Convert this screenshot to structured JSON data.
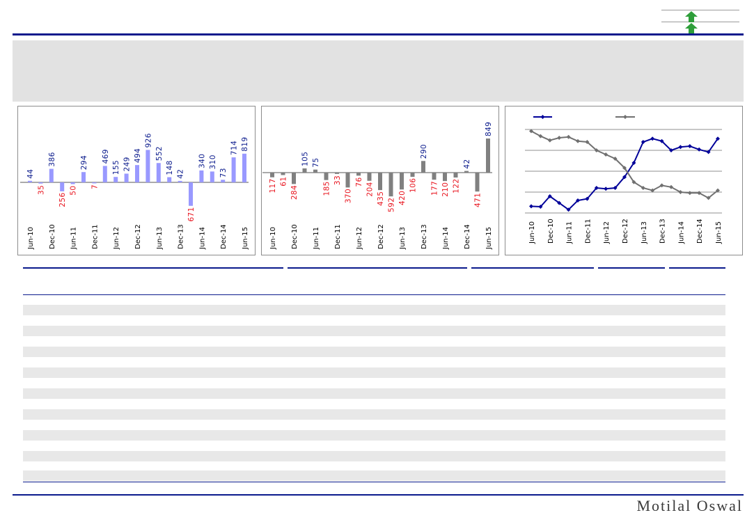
{
  "brand": {
    "name": "Motilal Oswal"
  },
  "header": {
    "arrows": [
      "up-arrow-icon",
      "up-arrow-icon"
    ],
    "arrow_color": "#2e9e3a"
  },
  "colors": {
    "accent": "#0a1a8c",
    "positive": "#0a1a8c",
    "negative": "#e8141e",
    "bar1": "#9999ff",
    "bar2": "#808080",
    "series1": "#000099",
    "series2": "#707070"
  },
  "chart_data": [
    {
      "type": "bar",
      "categories": [
        "Jun-10",
        "Sep-10",
        "Dec-10",
        "Mar-11",
        "Jun-11",
        "Sep-11",
        "Dec-11",
        "Mar-12",
        "Jun-12",
        "Sep-12",
        "Dec-12",
        "Mar-13",
        "Jun-13",
        "Sep-13",
        "Dec-13",
        "Mar-14",
        "Jun-14",
        "Sep-14",
        "Dec-14",
        "Mar-15",
        "Jun-15"
      ],
      "tick_labels": [
        "Jun-10",
        "Dec-10",
        "Jun-11",
        "Dec-11",
        "Jun-12",
        "Dec-12",
        "Jun-13",
        "Dec-13",
        "Jun-14",
        "Dec-14",
        "Jun-15"
      ],
      "values": [
        44,
        -35,
        386,
        -256,
        -50,
        294,
        -7,
        469,
        155,
        249,
        494,
        926,
        552,
        148,
        42,
        -671,
        340,
        310,
        73,
        714,
        819
      ],
      "labels": [
        "44",
        "35",
        "386",
        "256",
        "50",
        "294",
        "7",
        "469",
        "155",
        "249",
        "494",
        "926",
        "552",
        "148",
        "42",
        "671",
        "340",
        "310",
        "73",
        "714",
        "819"
      ],
      "ylim": [
        -850,
        1000
      ]
    },
    {
      "type": "bar",
      "categories": [
        "Jun-10",
        "Sep-10",
        "Dec-10",
        "Mar-11",
        "Jun-11",
        "Sep-11",
        "Dec-11",
        "Mar-12",
        "Jun-12",
        "Sep-12",
        "Dec-12",
        "Mar-13",
        "Jun-13",
        "Sep-13",
        "Dec-13",
        "Mar-14",
        "Jun-14",
        "Sep-14",
        "Dec-14",
        "Mar-15",
        "Jun-15"
      ],
      "tick_labels": [
        "Jun-10",
        "Dec-10",
        "Jun-11",
        "Dec-11",
        "Jun-12",
        "Dec-12",
        "Jun-13",
        "Dec-13",
        "Jun-14",
        "Dec-14",
        "Jun-15"
      ],
      "values": [
        -117,
        -61,
        -284,
        105,
        75,
        -185,
        -33,
        -370,
        -76,
        -204,
        -435,
        -592,
        -420,
        -106,
        290,
        -177,
        -210,
        -122,
        42,
        -471,
        849
      ],
      "labels": [
        "117",
        "61",
        "284",
        "105",
        "75",
        "185",
        "33",
        "370",
        "76",
        "204",
        "435",
        "592",
        "420",
        "106",
        "290",
        "177",
        "210",
        "122",
        "42",
        "471",
        "849"
      ],
      "ylim": [
        -800,
        1050
      ]
    },
    {
      "type": "line",
      "x": [
        "Jun-10",
        "Sep-10",
        "Dec-10",
        "Mar-11",
        "Jun-11",
        "Sep-11",
        "Dec-11",
        "Mar-12",
        "Jun-12",
        "Sep-12",
        "Dec-12",
        "Mar-13",
        "Jun-13",
        "Sep-13",
        "Dec-13",
        "Mar-14",
        "Jun-14",
        "Sep-14",
        "Dec-14",
        "Mar-15",
        "Jun-15"
      ],
      "tick_labels": [
        "Jun-10",
        "Dec-10",
        "Jun-11",
        "Dec-11",
        "Jun-12",
        "Dec-12",
        "Jun-13",
        "Dec-13",
        "Jun-14",
        "Dec-14",
        "Jun-15"
      ],
      "series": [
        {
          "values": [
            8,
            7.5,
            20,
            12,
            4,
            15,
            17,
            30,
            29,
            30,
            43,
            60,
            85,
            89,
            86,
            75,
            79,
            80,
            76,
            73,
            89
          ],
          "color": "#000099"
        },
        {
          "values": [
            98,
            92,
            87,
            90,
            91,
            86,
            85,
            75,
            70,
            65,
            54,
            37,
            30,
            27,
            33,
            31,
            25,
            24,
            24,
            18,
            27
          ],
          "color": "#707070"
        }
      ],
      "ylim": [
        0,
        100
      ],
      "grid": true,
      "legend": "top-left"
    }
  ]
}
